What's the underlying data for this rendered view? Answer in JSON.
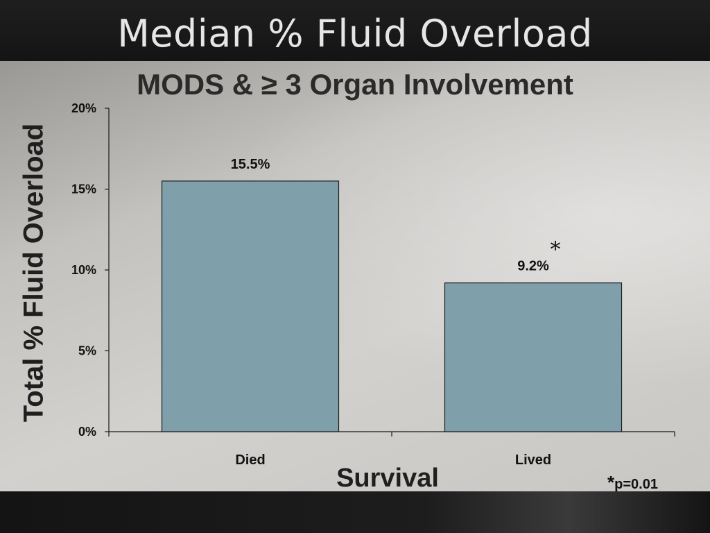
{
  "slide_title": "Median % Fluid Overload",
  "footnote": {
    "marker": "*",
    "text": "p=0.01"
  },
  "chart_data": {
    "type": "bar",
    "title": "MODS & ≥ 3 Organ Involvement",
    "xlabel": "Survival",
    "ylabel": "Total % Fluid Overload",
    "categories": [
      "Died",
      "Lived"
    ],
    "values": [
      15.5,
      9.2
    ],
    "data_labels": [
      "15.5%",
      "9.2%"
    ],
    "significance_marker": {
      "category": "Lived",
      "symbol": "*"
    },
    "ylim": [
      0,
      20
    ],
    "yticks": [
      0,
      5,
      10,
      15,
      20
    ],
    "ytick_labels": [
      "0%",
      "5%",
      "10%",
      "15%",
      "20%"
    ],
    "grid": false,
    "legend": "none",
    "colors": {
      "bar": "#7f9faa",
      "bar_edge": "#1a1a1a",
      "axis": "#1a1a1a"
    }
  }
}
